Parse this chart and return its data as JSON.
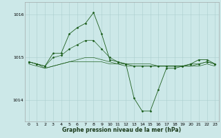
{
  "x": [
    0,
    1,
    2,
    3,
    4,
    5,
    6,
    7,
    8,
    9,
    10,
    11,
    12,
    13,
    14,
    15,
    16,
    17,
    18,
    19,
    20,
    21,
    22,
    23
  ],
  "line1": [
    1014.9,
    1014.85,
    1014.8,
    1015.1,
    1015.1,
    1015.55,
    1015.7,
    1015.8,
    1016.05,
    1015.55,
    1014.95,
    1014.9,
    1014.85,
    1014.05,
    1013.75,
    1013.75,
    1014.25,
    1014.75,
    1014.75,
    1014.8,
    1014.85,
    1014.95,
    1014.95,
    1014.85
  ],
  "line2": [
    1014.9,
    1014.85,
    1014.8,
    1015.0,
    1015.05,
    1015.2,
    1015.3,
    1015.4,
    1015.4,
    1015.2,
    1015.0,
    1014.9,
    1014.85,
    1014.8,
    1014.8,
    1014.8,
    1014.8,
    1014.8,
    1014.8,
    1014.8,
    1014.85,
    1014.85,
    1014.9,
    1014.85
  ],
  "line3": [
    1014.85,
    1014.8,
    1014.75,
    1014.8,
    1014.85,
    1014.9,
    1014.95,
    1015.0,
    1015.0,
    1014.95,
    1014.9,
    1014.85,
    1014.8,
    1014.8,
    1014.8,
    1014.8,
    1014.8,
    1014.8,
    1014.8,
    1014.8,
    1014.8,
    1014.8,
    1014.85,
    1014.8
  ],
  "line4": [
    1014.9,
    1014.85,
    1014.75,
    1014.8,
    1014.85,
    1014.9,
    1014.9,
    1014.9,
    1014.9,
    1014.9,
    1014.85,
    1014.85,
    1014.85,
    1014.85,
    1014.85,
    1014.85,
    1014.8,
    1014.8,
    1014.8,
    1014.8,
    1014.8,
    1014.85,
    1014.9,
    1014.85
  ],
  "bg_color": "#cce8e8",
  "line_color": "#1a5c1a",
  "grid_color": "#aacece",
  "xlabel": "Graphe pression niveau de la mer (hPa)",
  "ylim": [
    1013.5,
    1016.3
  ],
  "yticks": [
    1014,
    1015,
    1016
  ],
  "xticks": [
    0,
    1,
    2,
    3,
    4,
    5,
    6,
    7,
    8,
    9,
    10,
    11,
    12,
    13,
    14,
    15,
    16,
    17,
    18,
    19,
    20,
    21,
    22,
    23
  ],
  "tick_fontsize": 4.5,
  "xlabel_fontsize": 5.5,
  "line_width": 0.6,
  "marker": "D",
  "markersize": 1.5
}
